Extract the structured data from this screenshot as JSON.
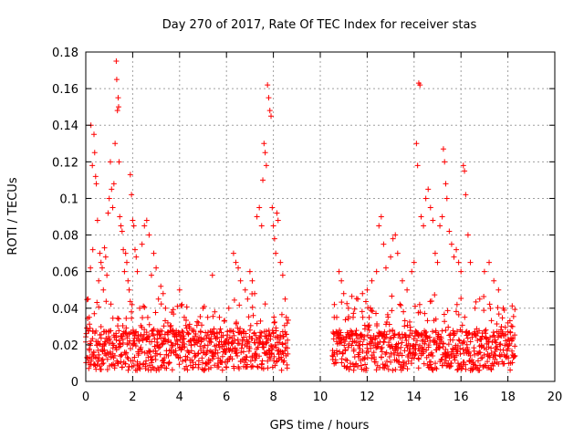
{
  "chart_data": {
    "type": "scatter",
    "title": "Day 270 of 2017, Rate Of TEC Index for receiver stas",
    "xlabel": "GPS time / hours",
    "ylabel": "ROTI / TECUs",
    "xlim": [
      0,
      20
    ],
    "ylim": [
      0,
      0.18
    ],
    "x_ticks": [
      0,
      2,
      4,
      6,
      8,
      10,
      12,
      14,
      16,
      18,
      20
    ],
    "y_ticks": [
      0,
      0.02,
      0.04,
      0.06,
      0.08,
      0.1,
      0.12,
      0.14,
      0.16,
      0.18
    ],
    "x_tick_labels": [
      "0",
      "2",
      "4",
      "6",
      "8",
      "10",
      "12",
      "14",
      "16",
      "18",
      "20"
    ],
    "y_tick_labels": [
      "0",
      "0.02",
      "0.04",
      "0.06",
      "0.08",
      "0.1",
      "0.12",
      "0.14",
      "0.16",
      "0.18"
    ],
    "grid": true,
    "marker": "+",
    "color": "#ff0000",
    "series": [
      {
        "name": "ROTI",
        "points": [
          [
            0.05,
            0.013
          ],
          [
            0.1,
            0.045
          ],
          [
            0.15,
            0.035
          ],
          [
            0.2,
            0.062
          ],
          [
            0.22,
            0.14
          ],
          [
            0.28,
            0.118
          ],
          [
            0.3,
            0.072
          ],
          [
            0.35,
            0.135
          ],
          [
            0.38,
            0.125
          ],
          [
            0.42,
            0.112
          ],
          [
            0.45,
            0.108
          ],
          [
            0.5,
            0.088
          ],
          [
            0.55,
            0.055
          ],
          [
            0.6,
            0.07
          ],
          [
            0.65,
            0.065
          ],
          [
            0.7,
            0.062
          ],
          [
            0.75,
            0.05
          ],
          [
            0.8,
            0.073
          ],
          [
            0.85,
            0.068
          ],
          [
            0.9,
            0.058
          ],
          [
            0.95,
            0.092
          ],
          [
            1.0,
            0.1
          ],
          [
            1.05,
            0.12
          ],
          [
            1.1,
            0.105
          ],
          [
            1.15,
            0.095
          ],
          [
            1.2,
            0.108
          ],
          [
            1.25,
            0.13
          ],
          [
            1.3,
            0.175
          ],
          [
            1.32,
            0.165
          ],
          [
            1.35,
            0.148
          ],
          [
            1.38,
            0.155
          ],
          [
            1.4,
            0.15
          ],
          [
            1.42,
            0.12
          ],
          [
            1.45,
            0.09
          ],
          [
            1.5,
            0.085
          ],
          [
            1.55,
            0.082
          ],
          [
            1.6,
            0.072
          ],
          [
            1.65,
            0.06
          ],
          [
            1.7,
            0.07
          ],
          [
            1.75,
            0.065
          ],
          [
            1.8,
            0.055
          ],
          [
            1.85,
            0.05
          ],
          [
            1.9,
            0.113
          ],
          [
            1.95,
            0.102
          ],
          [
            2.0,
            0.088
          ],
          [
            2.05,
            0.085
          ],
          [
            2.1,
            0.072
          ],
          [
            2.15,
            0.068
          ],
          [
            2.2,
            0.06
          ],
          [
            2.3,
            0.04
          ],
          [
            2.4,
            0.075
          ],
          [
            2.5,
            0.085
          ],
          [
            2.6,
            0.088
          ],
          [
            2.7,
            0.08
          ],
          [
            2.8,
            0.058
          ],
          [
            2.9,
            0.07
          ],
          [
            3.0,
            0.062
          ],
          [
            3.1,
            0.045
          ],
          [
            3.2,
            0.052
          ],
          [
            3.3,
            0.048
          ],
          [
            3.4,
            0.04
          ],
          [
            3.5,
            0.032
          ],
          [
            3.6,
            0.03
          ],
          [
            3.7,
            0.028
          ],
          [
            3.8,
            0.025
          ],
          [
            3.9,
            0.022
          ],
          [
            4.0,
            0.05
          ],
          [
            4.1,
            0.042
          ],
          [
            4.2,
            0.035
          ],
          [
            4.4,
            0.03
          ],
          [
            4.6,
            0.028
          ],
          [
            4.8,
            0.032
          ],
          [
            5.0,
            0.04
          ],
          [
            5.2,
            0.035
          ],
          [
            5.4,
            0.058
          ],
          [
            5.5,
            0.038
          ],
          [
            5.7,
            0.035
          ],
          [
            5.9,
            0.033
          ],
          [
            6.1,
            0.04
          ],
          [
            6.3,
            0.07
          ],
          [
            6.4,
            0.065
          ],
          [
            6.5,
            0.062
          ],
          [
            6.6,
            0.055
          ],
          [
            6.8,
            0.05
          ],
          [
            6.9,
            0.045
          ],
          [
            7.0,
            0.06
          ],
          [
            7.1,
            0.055
          ],
          [
            7.2,
            0.048
          ],
          [
            7.3,
            0.09
          ],
          [
            7.4,
            0.095
          ],
          [
            7.5,
            0.085
          ],
          [
            7.55,
            0.11
          ],
          [
            7.6,
            0.13
          ],
          [
            7.65,
            0.125
          ],
          [
            7.7,
            0.118
          ],
          [
            7.75,
            0.162
          ],
          [
            7.8,
            0.155
          ],
          [
            7.85,
            0.148
          ],
          [
            7.9,
            0.145
          ],
          [
            7.95,
            0.095
          ],
          [
            8.0,
            0.085
          ],
          [
            8.05,
            0.078
          ],
          [
            8.1,
            0.07
          ],
          [
            8.15,
            0.092
          ],
          [
            8.2,
            0.088
          ],
          [
            8.3,
            0.065
          ],
          [
            8.4,
            0.058
          ],
          [
            8.5,
            0.045
          ],
          [
            8.55,
            0.035
          ],
          [
            10.6,
            0.042
          ],
          [
            10.7,
            0.035
          ],
          [
            10.8,
            0.06
          ],
          [
            10.9,
            0.055
          ],
          [
            11.0,
            0.048
          ],
          [
            11.2,
            0.04
          ],
          [
            11.4,
            0.035
          ],
          [
            11.6,
            0.045
          ],
          [
            11.8,
            0.048
          ],
          [
            12.0,
            0.05
          ],
          [
            12.2,
            0.055
          ],
          [
            12.4,
            0.06
          ],
          [
            12.5,
            0.085
          ],
          [
            12.6,
            0.09
          ],
          [
            12.7,
            0.075
          ],
          [
            12.8,
            0.062
          ],
          [
            13.0,
            0.068
          ],
          [
            13.1,
            0.078
          ],
          [
            13.2,
            0.08
          ],
          [
            13.3,
            0.07
          ],
          [
            13.5,
            0.055
          ],
          [
            13.7,
            0.05
          ],
          [
            13.9,
            0.06
          ],
          [
            14.0,
            0.065
          ],
          [
            14.1,
            0.13
          ],
          [
            14.15,
            0.118
          ],
          [
            14.2,
            0.163
          ],
          [
            14.25,
            0.162
          ],
          [
            14.3,
            0.09
          ],
          [
            14.4,
            0.085
          ],
          [
            14.5,
            0.1
          ],
          [
            14.6,
            0.105
          ],
          [
            14.7,
            0.095
          ],
          [
            14.8,
            0.088
          ],
          [
            14.9,
            0.07
          ],
          [
            15.0,
            0.065
          ],
          [
            15.1,
            0.085
          ],
          [
            15.2,
            0.09
          ],
          [
            15.25,
            0.127
          ],
          [
            15.3,
            0.12
          ],
          [
            15.35,
            0.108
          ],
          [
            15.4,
            0.1
          ],
          [
            15.5,
            0.082
          ],
          [
            15.6,
            0.075
          ],
          [
            15.7,
            0.068
          ],
          [
            15.8,
            0.072
          ],
          [
            15.9,
            0.065
          ],
          [
            16.0,
            0.06
          ],
          [
            16.1,
            0.118
          ],
          [
            16.15,
            0.115
          ],
          [
            16.2,
            0.102
          ],
          [
            16.3,
            0.08
          ],
          [
            16.4,
            0.065
          ],
          [
            16.6,
            0.04
          ],
          [
            16.8,
            0.045
          ],
          [
            17.0,
            0.06
          ],
          [
            17.2,
            0.065
          ],
          [
            17.4,
            0.055
          ],
          [
            17.6,
            0.05
          ],
          [
            17.8,
            0.04
          ],
          [
            18.0,
            0.032
          ],
          [
            18.2,
            0.03
          ]
        ]
      }
    ]
  }
}
